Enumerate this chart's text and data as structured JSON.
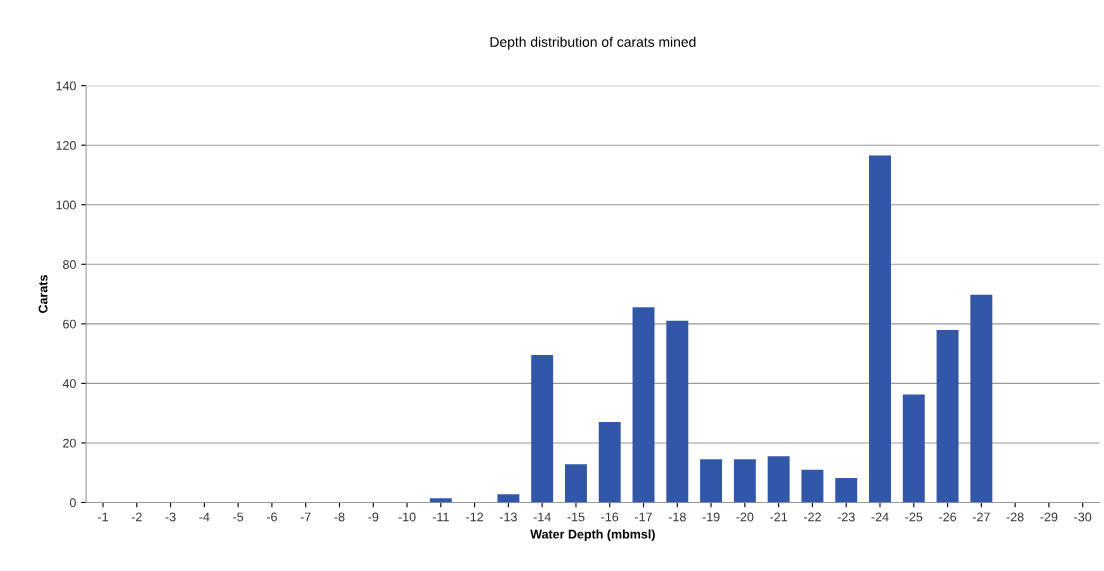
{
  "chart_data": {
    "type": "bar",
    "title": "Depth distribution of carats mined",
    "xlabel": "Water Depth (mbmsl)",
    "ylabel": "Carats",
    "categories": [
      "-1",
      "-2",
      "-3",
      "-4",
      "-5",
      "-6",
      "-7",
      "-8",
      "-9",
      "-10",
      "-11",
      "-12",
      "-13",
      "-14",
      "-15",
      "-16",
      "-17",
      "-18",
      "-19",
      "-20",
      "-21",
      "-22",
      "-23",
      "-24",
      "-25",
      "-26",
      "-27",
      "-28",
      "-29",
      "-30"
    ],
    "values": [
      0,
      0,
      0,
      0,
      0,
      0,
      0,
      0,
      0,
      0,
      1.4,
      0,
      2.8,
      49.5,
      12.8,
      27,
      65.6,
      61,
      14.5,
      14.5,
      15.5,
      11,
      8.2,
      116.5,
      36.3,
      57.9,
      69.8,
      0,
      0,
      0
    ],
    "color": "#3357a8",
    "ylim": [
      0,
      140
    ],
    "yticks": [
      0,
      20,
      40,
      60,
      80,
      100,
      120,
      140
    ],
    "grid": "y",
    "legend": false
  }
}
